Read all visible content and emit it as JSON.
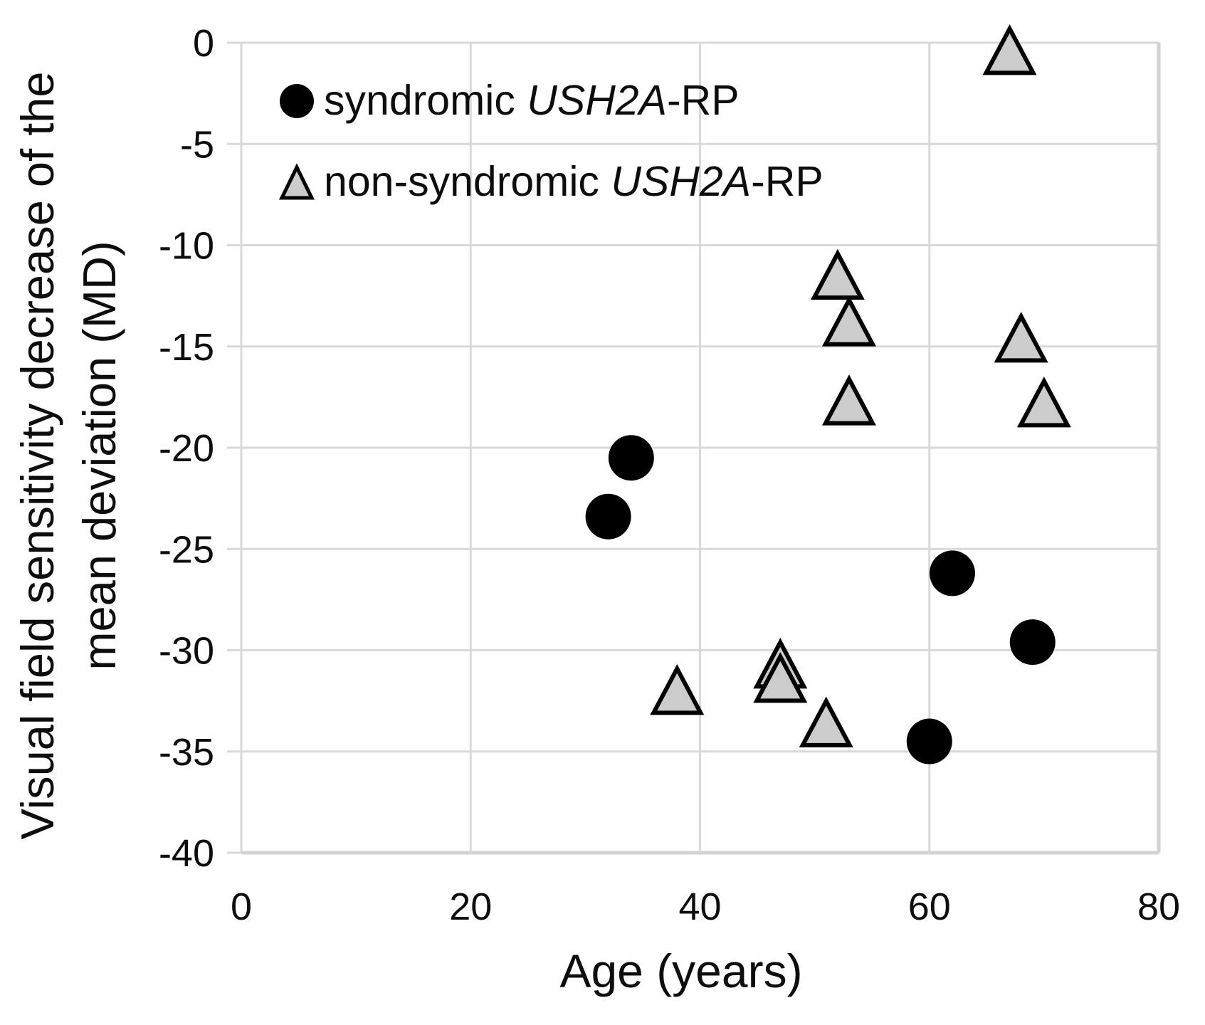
{
  "chart_data": {
    "type": "scatter",
    "title": "",
    "xlabel": "Age (years)",
    "ylabel": [
      "Visual field sensitivity decrease of the",
      "mean deviation (MD)"
    ],
    "xlim": [
      0,
      80
    ],
    "ylim": [
      -40,
      0
    ],
    "x_ticks": [
      0,
      20,
      40,
      60,
      80
    ],
    "y_ticks": [
      0,
      -5,
      -10,
      -15,
      -20,
      -25,
      -30,
      -35,
      -40
    ],
    "grid": true,
    "legend": {
      "position": "top-left-inside",
      "items": [
        {
          "marker": "circle",
          "prefix": "syndromic ",
          "italic": "USH2A",
          "suffix": "-RP"
        },
        {
          "marker": "triangle",
          "prefix": "non-syndromic ",
          "italic": "USH2A",
          "suffix": "-RP"
        }
      ]
    },
    "series": [
      {
        "name": "syndromic USH2A-RP",
        "marker": "circle",
        "fill": "#000000",
        "points": [
          [
            32,
            -23.4
          ],
          [
            34,
            -20.5
          ],
          [
            60,
            -34.5
          ],
          [
            62,
            -26.2
          ],
          [
            69,
            -29.6
          ]
        ]
      },
      {
        "name": "non-syndromic USH2A-RP",
        "marker": "triangle",
        "fill": "#cccccc",
        "stroke": "#000000",
        "points": [
          [
            38,
            -32.0
          ],
          [
            47,
            -30.7
          ],
          [
            47,
            -31.4
          ],
          [
            51,
            -33.6
          ],
          [
            52,
            -11.5
          ],
          [
            53,
            -13.8
          ],
          [
            53,
            -17.7
          ],
          [
            67,
            -0.4
          ],
          [
            68,
            -14.6
          ],
          [
            70,
            -17.8
          ]
        ]
      }
    ],
    "colors": {
      "gridline": "#d9d9d9",
      "axis_line": "#d3d3d3",
      "tick_label": "#0d0d0d",
      "title": "#0d0d0d"
    }
  }
}
